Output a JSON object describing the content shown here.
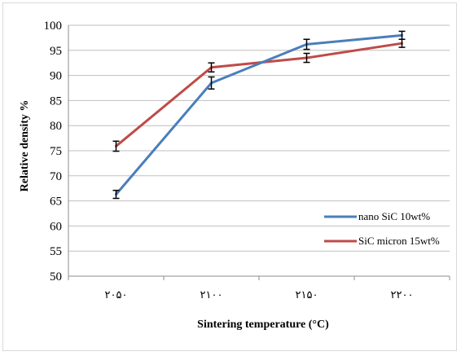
{
  "chart_data": {
    "type": "line",
    "title": "",
    "xlabel": "Sintering temperature (°C)",
    "ylabel": "Relative density %",
    "categories": [
      "۲۰۵۰",
      "۲۱۰۰",
      "۲۱۵۰",
      "۲۲۰۰"
    ],
    "ylim": [
      50,
      100
    ],
    "yticks": [
      50,
      55,
      60,
      65,
      70,
      75,
      80,
      85,
      90,
      95,
      100
    ],
    "grid": "horizontal",
    "legend_position": "right",
    "series": [
      {
        "name": "nano SiC 10wt%",
        "color": "#4a7ebb",
        "values": [
          66.3,
          88.5,
          96.2,
          98.0
        ],
        "errors": [
          0.8,
          1.2,
          1.0,
          0.8
        ]
      },
      {
        "name": "SiC micron 15wt%",
        "color": "#be4b48",
        "values": [
          75.9,
          91.6,
          93.5,
          96.4
        ],
        "errors": [
          1.0,
          0.9,
          0.9,
          0.8
        ]
      }
    ]
  }
}
